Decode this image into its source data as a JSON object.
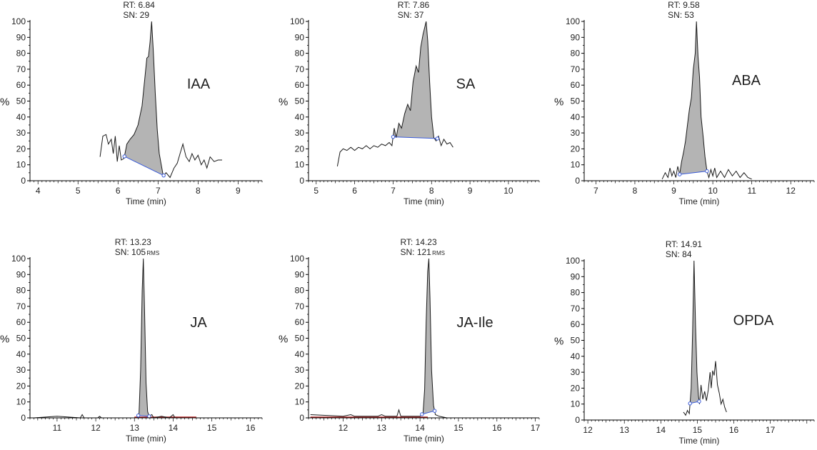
{
  "colors": {
    "trace": "#1a1a1a",
    "fill": "#b4b4b4",
    "baseline": "#3a5bd9",
    "noise_red": "#b22222",
    "axis": "#000000"
  },
  "chart_data": [
    {
      "type": "line",
      "compound": "IAA",
      "title": "IAA",
      "rt_label": "RT: 6.84",
      "sn_label": "SN: 29",
      "sn_suffix": "",
      "xlabel": "Time (min)",
      "ylabel": "%",
      "xlim": [
        3.8,
        9.6
      ],
      "ylim": [
        0,
        100
      ],
      "xticks": [
        4,
        5,
        6,
        7,
        8,
        9
      ],
      "yticks": [
        0,
        10,
        20,
        30,
        40,
        50,
        60,
        70,
        80,
        90,
        100
      ],
      "trace": [
        [
          5.55,
          15
        ],
        [
          5.62,
          28
        ],
        [
          5.7,
          29
        ],
        [
          5.76,
          23
        ],
        [
          5.83,
          26
        ],
        [
          5.88,
          17
        ],
        [
          5.93,
          28
        ],
        [
          5.98,
          12
        ],
        [
          6.03,
          22
        ],
        [
          6.08,
          13
        ],
        [
          6.15,
          14
        ],
        [
          6.22,
          23
        ],
        [
          6.3,
          26
        ],
        [
          6.4,
          29
        ],
        [
          6.5,
          35
        ],
        [
          6.6,
          47
        ],
        [
          6.68,
          67
        ],
        [
          6.72,
          77
        ],
        [
          6.76,
          78
        ],
        [
          6.8,
          87
        ],
        [
          6.84,
          100
        ],
        [
          6.88,
          82
        ],
        [
          6.93,
          55
        ],
        [
          6.98,
          32
        ],
        [
          7.03,
          17
        ],
        [
          7.08,
          10
        ],
        [
          7.13,
          3
        ],
        [
          7.2,
          5
        ],
        [
          7.3,
          2
        ],
        [
          7.4,
          8
        ],
        [
          7.48,
          11
        ],
        [
          7.55,
          17
        ],
        [
          7.62,
          23
        ],
        [
          7.7,
          15
        ],
        [
          7.78,
          12
        ],
        [
          7.85,
          17
        ],
        [
          7.92,
          13
        ],
        [
          8.0,
          16
        ],
        [
          8.08,
          10
        ],
        [
          8.15,
          13
        ],
        [
          8.22,
          8
        ],
        [
          8.3,
          15
        ],
        [
          8.4,
          12
        ],
        [
          8.5,
          13
        ],
        [
          8.6,
          13
        ]
      ],
      "peak_start": 6.16,
      "peak_end": 7.14,
      "noise": []
    },
    {
      "type": "line",
      "compound": "SA",
      "title": "SA",
      "rt_label": "RT: 7.86",
      "sn_label": "SN: 37",
      "sn_suffix": "",
      "xlabel": "Time (min)",
      "ylabel": "%",
      "xlim": [
        4.8,
        10.8
      ],
      "ylim": [
        0,
        100
      ],
      "xticks": [
        5,
        6,
        7,
        8,
        9,
        10
      ],
      "yticks": [
        0,
        10,
        20,
        30,
        40,
        50,
        60,
        70,
        80,
        90,
        100
      ],
      "trace": [
        [
          5.55,
          9
        ],
        [
          5.62,
          18
        ],
        [
          5.7,
          20
        ],
        [
          5.8,
          19
        ],
        [
          5.9,
          21
        ],
        [
          6.0,
          19
        ],
        [
          6.1,
          21
        ],
        [
          6.2,
          20
        ],
        [
          6.3,
          22
        ],
        [
          6.4,
          20
        ],
        [
          6.5,
          22
        ],
        [
          6.6,
          21
        ],
        [
          6.7,
          23
        ],
        [
          6.8,
          22
        ],
        [
          6.9,
          24
        ],
        [
          6.97,
          22
        ],
        [
          7.03,
          33
        ],
        [
          7.08,
          27
        ],
        [
          7.15,
          36
        ],
        [
          7.22,
          33
        ],
        [
          7.3,
          42
        ],
        [
          7.38,
          48
        ],
        [
          7.45,
          44
        ],
        [
          7.52,
          62
        ],
        [
          7.6,
          72
        ],
        [
          7.66,
          68
        ],
        [
          7.72,
          84
        ],
        [
          7.78,
          92
        ],
        [
          7.83,
          97
        ],
        [
          7.86,
          100
        ],
        [
          7.9,
          88
        ],
        [
          7.95,
          62
        ],
        [
          8.0,
          40
        ],
        [
          8.06,
          27
        ],
        [
          8.12,
          25
        ],
        [
          8.18,
          28
        ],
        [
          8.25,
          22
        ],
        [
          8.32,
          26
        ],
        [
          8.4,
          23
        ],
        [
          8.48,
          24
        ],
        [
          8.56,
          21
        ]
      ],
      "peak_start": 7.0,
      "peak_end": 8.15,
      "noise": []
    },
    {
      "type": "line",
      "compound": "ABA",
      "title": "ABA",
      "rt_label": "RT: 9.58",
      "sn_label": "SN: 53",
      "sn_suffix": "",
      "xlabel": "Time (min)",
      "ylabel": "%",
      "xlim": [
        6.7,
        12.6
      ],
      "ylim": [
        0,
        100
      ],
      "xticks": [
        7,
        8,
        9,
        10,
        11,
        12
      ],
      "yticks": [
        0,
        10,
        20,
        30,
        40,
        50,
        60,
        70,
        80,
        90,
        100
      ],
      "trace": [
        [
          8.7,
          1
        ],
        [
          8.78,
          5
        ],
        [
          8.85,
          2
        ],
        [
          8.9,
          8
        ],
        [
          8.95,
          3
        ],
        [
          9.0,
          6
        ],
        [
          9.05,
          2
        ],
        [
          9.1,
          9
        ],
        [
          9.15,
          4
        ],
        [
          9.2,
          12
        ],
        [
          9.25,
          18
        ],
        [
          9.3,
          25
        ],
        [
          9.35,
          35
        ],
        [
          9.4,
          45
        ],
        [
          9.45,
          52
        ],
        [
          9.5,
          70
        ],
        [
          9.55,
          80
        ],
        [
          9.58,
          100
        ],
        [
          9.62,
          78
        ],
        [
          9.66,
          65
        ],
        [
          9.7,
          40
        ],
        [
          9.75,
          28
        ],
        [
          9.8,
          15
        ],
        [
          9.85,
          6
        ],
        [
          9.9,
          2
        ],
        [
          9.95,
          7
        ],
        [
          10.0,
          3
        ],
        [
          10.05,
          8
        ],
        [
          10.1,
          2
        ],
        [
          10.2,
          6
        ],
        [
          10.3,
          2
        ],
        [
          10.4,
          7
        ],
        [
          10.5,
          3
        ],
        [
          10.6,
          6
        ],
        [
          10.7,
          2
        ],
        [
          10.8,
          5
        ],
        [
          10.9,
          2
        ],
        [
          11.0,
          1
        ]
      ],
      "peak_start": 9.15,
      "peak_end": 9.85,
      "noise": []
    },
    {
      "type": "line",
      "compound": "JA",
      "title": "JA",
      "rt_label": "RT: 13.23",
      "sn_label": "SN: 105",
      "sn_suffix": "RMS",
      "xlabel": "Time (min)",
      "ylabel": "%",
      "xlim": [
        10.3,
        16.3
      ],
      "ylim": [
        0,
        100
      ],
      "xticks": [
        11,
        12,
        13,
        14,
        15,
        16
      ],
      "yticks": [
        0,
        10,
        20,
        30,
        40,
        50,
        60,
        70,
        80,
        90,
        100
      ],
      "trace": [
        [
          10.4,
          0
        ],
        [
          11.0,
          1
        ],
        [
          11.6,
          0
        ],
        [
          11.65,
          2
        ],
        [
          11.7,
          0
        ],
        [
          12.05,
          0
        ],
        [
          12.1,
          1
        ],
        [
          12.15,
          0
        ],
        [
          13.08,
          0
        ],
        [
          13.12,
          3
        ],
        [
          13.16,
          30
        ],
        [
          13.2,
          80
        ],
        [
          13.23,
          100
        ],
        [
          13.26,
          70
        ],
        [
          13.3,
          22
        ],
        [
          13.34,
          4
        ],
        [
          13.38,
          1
        ],
        [
          13.45,
          2
        ],
        [
          13.5,
          0
        ],
        [
          13.7,
          1
        ],
        [
          13.9,
          0
        ],
        [
          14.0,
          2
        ],
        [
          14.05,
          0
        ],
        [
          14.6,
          0
        ]
      ],
      "peak_start": 13.1,
      "peak_end": 13.38,
      "noise": [
        13.0,
        14.6
      ]
    },
    {
      "type": "line",
      "compound": "JA-Ile",
      "title": "JA-Ile",
      "rt_label": "RT: 14.23",
      "sn_label": "SN: 121",
      "sn_suffix": "RMS",
      "xlabel": "Time (min)",
      "ylabel": "%",
      "xlim": [
        11.1,
        17.1
      ],
      "ylim": [
        0,
        100
      ],
      "xticks": [
        12,
        13,
        14,
        15,
        16,
        17
      ],
      "yticks": [
        0,
        10,
        20,
        30,
        40,
        50,
        60,
        70,
        80,
        90,
        100
      ],
      "trace": [
        [
          11.15,
          2
        ],
        [
          12.0,
          1
        ],
        [
          12.2,
          2
        ],
        [
          12.3,
          1
        ],
        [
          12.9,
          1
        ],
        [
          13.0,
          2
        ],
        [
          13.1,
          1
        ],
        [
          13.4,
          1
        ],
        [
          13.45,
          5
        ],
        [
          13.5,
          1
        ],
        [
          14.0,
          1
        ],
        [
          14.08,
          3
        ],
        [
          14.12,
          18
        ],
        [
          14.16,
          60
        ],
        [
          14.2,
          92
        ],
        [
          14.23,
          100
        ],
        [
          14.26,
          75
        ],
        [
          14.3,
          30
        ],
        [
          14.35,
          8
        ],
        [
          14.4,
          2
        ],
        [
          14.5,
          1
        ],
        [
          14.7,
          0
        ]
      ],
      "peak_start": 14.05,
      "peak_end": 14.38,
      "noise": [
        11.15,
        14.2
      ]
    },
    {
      "type": "line",
      "compound": "OPDA",
      "title": "OPDA",
      "rt_label": "RT: 14.91",
      "sn_label": "SN: 84",
      "sn_suffix": "",
      "xlabel": "Time (min)",
      "ylabel": "%",
      "xlim": [
        11.9,
        18.2
      ],
      "ylim": [
        0,
        100
      ],
      "xticks": [
        12,
        13,
        14,
        15,
        16,
        17
      ],
      "yticks": [
        0,
        10,
        20,
        30,
        40,
        50,
        60,
        70,
        80,
        90,
        100
      ],
      "trace": [
        [
          14.62,
          5
        ],
        [
          14.68,
          3
        ],
        [
          14.73,
          6
        ],
        [
          14.78,
          4
        ],
        [
          14.83,
          20
        ],
        [
          14.87,
          55
        ],
        [
          14.91,
          100
        ],
        [
          14.95,
          60
        ],
        [
          14.99,
          30
        ],
        [
          15.03,
          15
        ],
        [
          15.06,
          10
        ],
        [
          15.1,
          22
        ],
        [
          15.15,
          13
        ],
        [
          15.2,
          18
        ],
        [
          15.25,
          12
        ],
        [
          15.3,
          19
        ],
        [
          15.35,
          30
        ],
        [
          15.38,
          20
        ],
        [
          15.42,
          31
        ],
        [
          15.46,
          28
        ],
        [
          15.5,
          37
        ],
        [
          15.55,
          22
        ],
        [
          15.6,
          17
        ],
        [
          15.65,
          10
        ],
        [
          15.7,
          13
        ],
        [
          15.75,
          8
        ],
        [
          15.8,
          5
        ]
      ],
      "peak_start": 14.8,
      "peak_end": 15.05,
      "noise": []
    }
  ]
}
